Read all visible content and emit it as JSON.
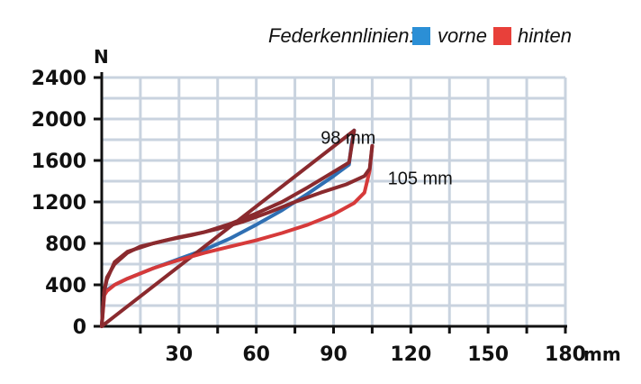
{
  "chart_data": {
    "type": "line",
    "xlabel": "mm",
    "ylabel": "N",
    "xlim": [
      0,
      180
    ],
    "ylim": [
      0,
      2400
    ],
    "x_ticks": [
      0,
      30,
      60,
      90,
      120,
      150,
      180
    ],
    "x_tick_labels": [
      "30",
      "60",
      "90",
      "120",
      "150",
      "180"
    ],
    "y_ticks": [
      0,
      400,
      800,
      1200,
      1600,
      2000,
      2400
    ],
    "y_tick_labels": [
      "0",
      "400",
      "800",
      "1200",
      "1600",
      "2000",
      "2400"
    ],
    "grid": true,
    "legend": {
      "position": "top-right",
      "title": "Federkennlinien:",
      "entries": [
        {
          "label": "vorne",
          "color": "#2b8fd6"
        },
        {
          "label": "hinten",
          "color": "#e8403a"
        }
      ]
    },
    "annotations": [
      {
        "text": "98  mm",
        "x": 85,
        "y": 1760
      },
      {
        "text": "105  mm",
        "x": 111,
        "y": 1370
      }
    ],
    "series": [
      {
        "name": "vorne",
        "color": "#2f6fb3",
        "x": [
          0,
          0.5,
          1,
          2,
          5,
          10,
          20,
          30,
          40,
          50,
          60,
          70,
          80,
          90,
          96,
          97,
          98
        ],
        "y": [
          0,
          200,
          330,
          350,
          400,
          460,
          560,
          650,
          740,
          850,
          980,
          1120,
          1280,
          1450,
          1560,
          1760,
          1890
        ]
      },
      {
        "name": "vorne",
        "color": "#8a2a2e",
        "x": [
          0,
          98,
          96,
          90,
          80,
          70,
          60,
          50,
          40,
          30,
          20,
          10,
          5,
          2,
          1,
          0.5,
          0
        ],
        "y": [
          0,
          1890,
          1580,
          1490,
          1340,
          1200,
          1090,
          990,
          910,
          860,
          800,
          720,
          620,
          450,
          340,
          200,
          0
        ]
      },
      {
        "name": "hinten",
        "color": "#d63a3a",
        "x": [
          0,
          1,
          2,
          5,
          10,
          20,
          30,
          40,
          50,
          60,
          70,
          80,
          90,
          98,
          102,
          104,
          105
        ],
        "y": [
          0,
          300,
          340,
          400,
          460,
          560,
          640,
          710,
          770,
          830,
          900,
          980,
          1080,
          1190,
          1290,
          1500,
          1740
        ]
      },
      {
        "name": "hinten",
        "color": "#8a2a2e",
        "x": [
          105,
          104,
          102,
          95,
          85,
          75,
          65,
          55,
          45,
          35,
          25,
          15,
          10,
          5,
          2,
          1,
          0
        ],
        "y": [
          1740,
          1520,
          1450,
          1370,
          1290,
          1200,
          1100,
          1010,
          940,
          880,
          830,
          770,
          710,
          600,
          470,
          350,
          0
        ]
      }
    ]
  }
}
